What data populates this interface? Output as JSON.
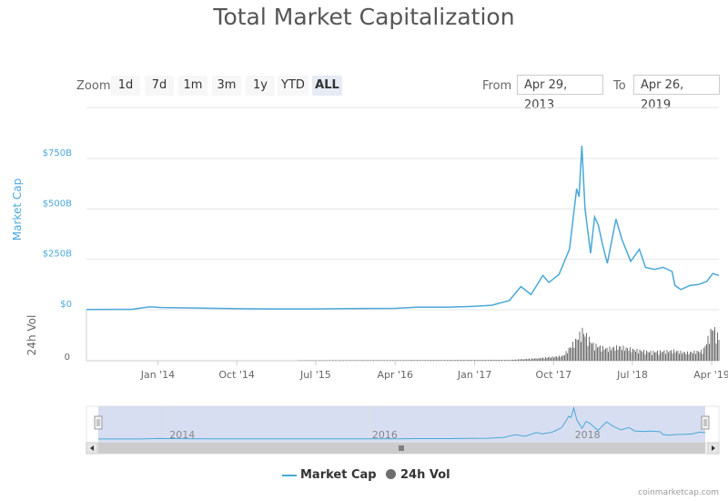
{
  "title": "Total Market Capitalization",
  "zoom": {
    "label": "Zoom",
    "buttons": [
      "1d",
      "7d",
      "1m",
      "3m",
      "1y",
      "YTD",
      "ALL"
    ],
    "active": "ALL"
  },
  "range": {
    "from_label": "From",
    "from_value": "Apr 29, 2013",
    "to_label": "To",
    "to_value": "Apr 26, 2019"
  },
  "legend": {
    "market_cap": "Market Cap",
    "volume": "24h Vol"
  },
  "credits": "coinmarketcap.com",
  "colors": {
    "market_cap": "#4aa8d8",
    "volume": "#6e6e6e",
    "navigator_mask": "#cdd6ee"
  },
  "chart_data": {
    "type": "line",
    "x_range": [
      "2013-04-29",
      "2019-04-26"
    ],
    "x_tick_labels": [
      "Jan '14",
      "Oct '14",
      "Jul '15",
      "Apr '16",
      "Jan '17",
      "Oct '17",
      "Jul '18",
      "Apr '19"
    ],
    "y_axis": {
      "label": "Market Cap",
      "tick_labels": [
        "$0",
        "$250B",
        "$500B",
        "$750B"
      ],
      "range_billion_usd": [
        0,
        800
      ]
    },
    "volume_axis": {
      "label": "24h Vol",
      "tick_labels": [
        "0"
      ]
    },
    "navigator_tick_labels": [
      "2014",
      "2016",
      "2018"
    ],
    "series": [
      {
        "name": "Market Cap",
        "unit": "billion USD",
        "points": [
          [
            "2013-04-29",
            1.5
          ],
          [
            "2013-10-01",
            2
          ],
          [
            "2013-12-04",
            14
          ],
          [
            "2014-01-15",
            11
          ],
          [
            "2014-06-01",
            8
          ],
          [
            "2014-10-01",
            5
          ],
          [
            "2015-01-15",
            4
          ],
          [
            "2015-07-01",
            4
          ],
          [
            "2015-11-05",
            6
          ],
          [
            "2016-04-01",
            7
          ],
          [
            "2016-06-15",
            12
          ],
          [
            "2016-10-01",
            12
          ],
          [
            "2017-01-01",
            17
          ],
          [
            "2017-03-01",
            22
          ],
          [
            "2017-05-01",
            45
          ],
          [
            "2017-06-10",
            115
          ],
          [
            "2017-07-15",
            75
          ],
          [
            "2017-08-25",
            170
          ],
          [
            "2017-09-15",
            135
          ],
          [
            "2017-10-20",
            175
          ],
          [
            "2017-11-25",
            300
          ],
          [
            "2017-12-20",
            600
          ],
          [
            "2017-12-28",
            560
          ],
          [
            "2018-01-07",
            813
          ],
          [
            "2018-01-18",
            500
          ],
          [
            "2018-02-06",
            280
          ],
          [
            "2018-02-20",
            460
          ],
          [
            "2018-03-05",
            420
          ],
          [
            "2018-03-20",
            320
          ],
          [
            "2018-04-05",
            230
          ],
          [
            "2018-05-05",
            450
          ],
          [
            "2018-05-25",
            350
          ],
          [
            "2018-06-25",
            240
          ],
          [
            "2018-07-25",
            300
          ],
          [
            "2018-08-15",
            210
          ],
          [
            "2018-09-15",
            200
          ],
          [
            "2018-10-15",
            210
          ],
          [
            "2018-11-15",
            190
          ],
          [
            "2018-11-25",
            120
          ],
          [
            "2018-12-15",
            100
          ],
          [
            "2019-01-15",
            120
          ],
          [
            "2019-02-15",
            125
          ],
          [
            "2019-03-15",
            140
          ],
          [
            "2019-04-05",
            180
          ],
          [
            "2019-04-26",
            170
          ]
        ]
      },
      {
        "name": "24h Vol",
        "unit": "relative",
        "points": [
          [
            "2013-04-29",
            0
          ],
          [
            "2017-05-01",
            0.02
          ],
          [
            "2017-08-01",
            0.06
          ],
          [
            "2017-11-01",
            0.12
          ],
          [
            "2017-12-20",
            0.55
          ],
          [
            "2018-01-07",
            0.75
          ],
          [
            "2018-02-15",
            0.4
          ],
          [
            "2018-04-01",
            0.3
          ],
          [
            "2018-05-15",
            0.35
          ],
          [
            "2018-07-01",
            0.28
          ],
          [
            "2018-09-01",
            0.22
          ],
          [
            "2018-11-20",
            0.25
          ],
          [
            "2019-01-01",
            0.2
          ],
          [
            "2019-03-01",
            0.25
          ],
          [
            "2019-04-03",
            0.85
          ],
          [
            "2019-04-26",
            0.55
          ]
        ]
      }
    ]
  }
}
